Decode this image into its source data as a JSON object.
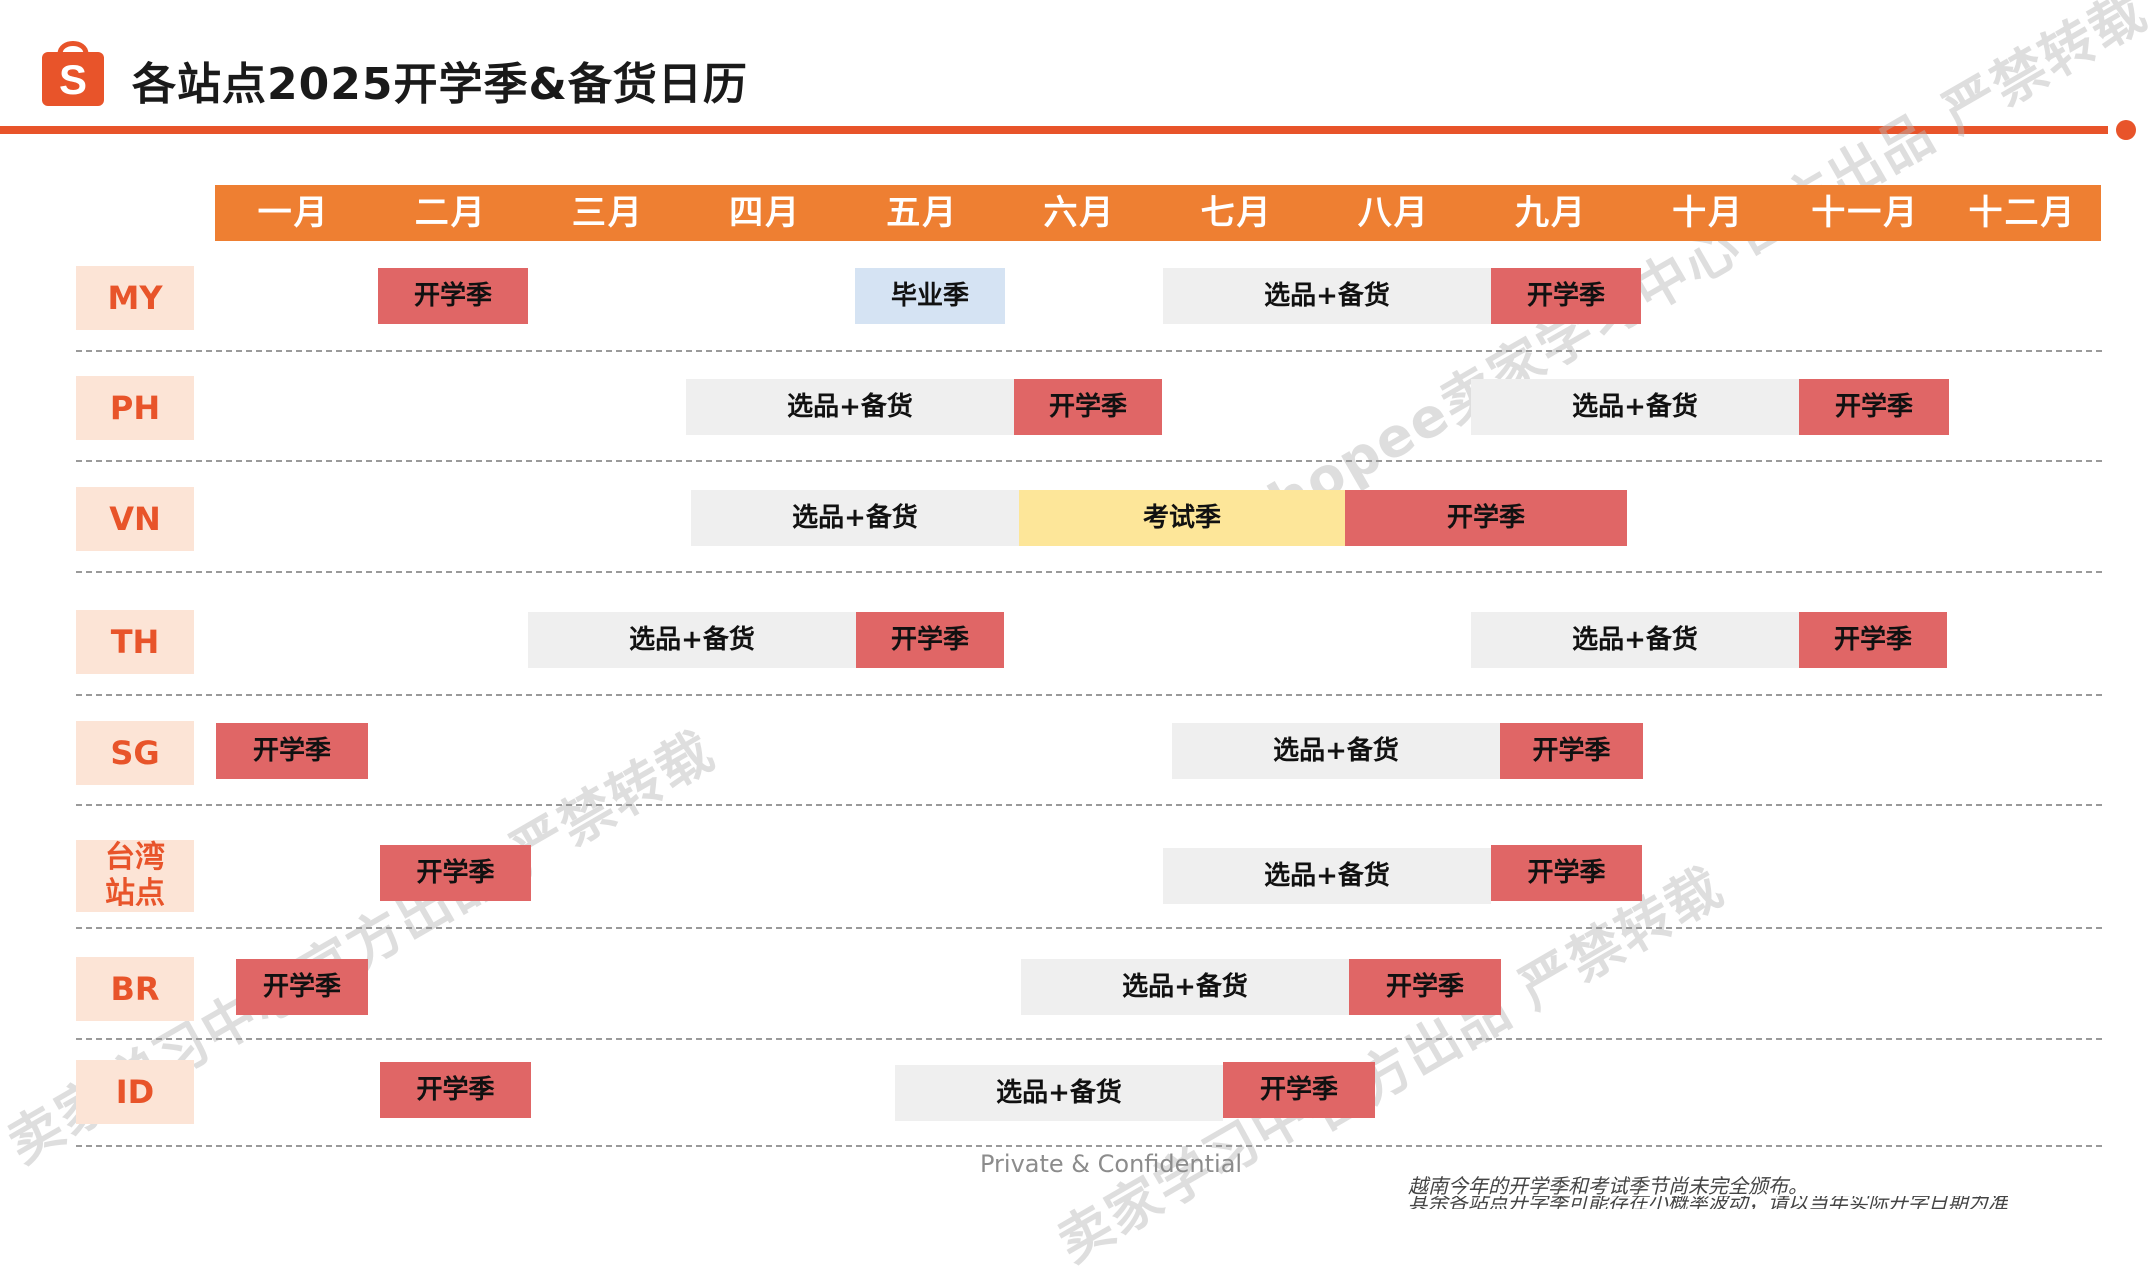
{
  "header": {
    "logo_letter": "S",
    "title": "各站点2025开学季&备货日历",
    "brand_color": "#e8542a"
  },
  "months": [
    "一月",
    "二月",
    "三月",
    "四月",
    "五月",
    "六月",
    "七月",
    "八月",
    "九月",
    "十月",
    "十一月",
    "十二月"
  ],
  "rows": [
    {
      "label": "MY",
      "bars": [
        {
          "text": "开学季",
          "kind": "school"
        },
        {
          "text": "毕业季",
          "kind": "graduation"
        },
        {
          "text": "选品+备货",
          "kind": "stock"
        },
        {
          "text": "开学季",
          "kind": "school"
        }
      ]
    },
    {
      "label": "PH",
      "bars": [
        {
          "text": "选品+备货",
          "kind": "stock"
        },
        {
          "text": "开学季",
          "kind": "school"
        },
        {
          "text": "选品+备货",
          "kind": "stock"
        },
        {
          "text": "开学季",
          "kind": "school"
        }
      ]
    },
    {
      "label": "VN",
      "bars": [
        {
          "text": "选品+备货",
          "kind": "stock"
        },
        {
          "text": "考试季",
          "kind": "exam"
        },
        {
          "text": "开学季",
          "kind": "school"
        }
      ]
    },
    {
      "label": "TH",
      "bars": [
        {
          "text": "选品+备货",
          "kind": "stock"
        },
        {
          "text": "开学季",
          "kind": "school"
        },
        {
          "text": "选品+备货",
          "kind": "stock"
        },
        {
          "text": "开学季",
          "kind": "school"
        }
      ]
    },
    {
      "label": "SG",
      "bars": [
        {
          "text": "开学季",
          "kind": "school"
        },
        {
          "text": "选品+备货",
          "kind": "stock"
        },
        {
          "text": "开学季",
          "kind": "school"
        }
      ]
    },
    {
      "label_line1": "台湾",
      "label_line2": "站点",
      "bars": [
        {
          "text": "开学季",
          "kind": "school"
        },
        {
          "text": "选品+备货",
          "kind": "stock"
        },
        {
          "text": "开学季",
          "kind": "school"
        }
      ]
    },
    {
      "label": "BR",
      "bars": [
        {
          "text": "开学季",
          "kind": "school"
        },
        {
          "text": "选品+备货",
          "kind": "stock"
        },
        {
          "text": "开学季",
          "kind": "school"
        }
      ]
    },
    {
      "label": "ID",
      "bars": [
        {
          "text": "开学季",
          "kind": "school"
        },
        {
          "text": "选品+备货",
          "kind": "stock"
        },
        {
          "text": "开学季",
          "kind": "school"
        }
      ]
    }
  ],
  "colors": {
    "month_header": "#ee7f32",
    "school": "#e06666",
    "stock": "#efefef",
    "graduation": "#d5e3f3",
    "exam": "#fde699",
    "row_label_bg": "#fce4d6"
  },
  "watermarks": {
    "a": "shopee卖家学习中心官方出品 严禁转载",
    "b": "卖家学习中心官方出品 严禁转载",
    "c": "官方出品 严禁转载",
    "d": "卖家学习中心"
  },
  "footer": {
    "confidential": "Private & Confidential",
    "note1": "越南今年的开学季和考试季节尚未完全颁布。",
    "note2": "其余各站点开学季可能存在小概率波动，请以当年实际开学日期为准"
  }
}
